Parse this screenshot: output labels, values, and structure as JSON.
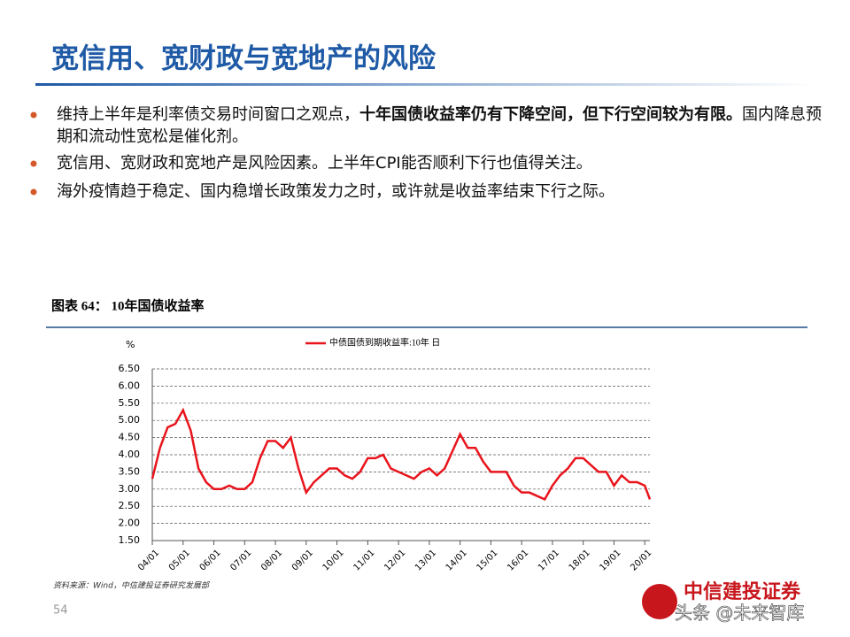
{
  "title": "宽信用、宽财政与宽地产的风险",
  "bullets": [
    {
      "parts": [
        {
          "text": "维持上半年是利率债交易时间窗口之观点，",
          "bold": false
        },
        {
          "text": "十年国债收益率仍有下降空间，但下行空间较为有限。",
          "bold": true
        },
        {
          "text": "国内降息预期和流动性宽松是催化剂。",
          "bold": false
        }
      ]
    },
    {
      "parts": [
        {
          "text": "宽信用、宽财政和宽地产是风险因素。上半年CPI能否顺利下行也值得关注。",
          "bold": false
        }
      ]
    },
    {
      "parts": [
        {
          "text": "海外疫情趋于稳定、国内稳增长政策发力之时，或许就是收益率结束下行之际。",
          "bold": false
        }
      ]
    }
  ],
  "chart_caption": "图表 64：  10年国债收益率",
  "source": "资料来源：Wind，中信建投证券研究发展部",
  "page_number": "54",
  "logo": "中信建投证券",
  "watermark": "头条 @未来智库",
  "chart_data": {
    "type": "line",
    "y_label": "%",
    "x": [
      "04/01",
      "04/04",
      "04/07",
      "04/10",
      "05/01",
      "05/04",
      "05/07",
      "05/10",
      "06/01",
      "06/04",
      "06/07",
      "06/10",
      "07/01",
      "07/04",
      "07/07",
      "07/10",
      "08/01",
      "08/04",
      "08/07",
      "08/10",
      "09/01",
      "09/04",
      "09/07",
      "09/10",
      "10/01",
      "10/04",
      "10/07",
      "10/10",
      "11/01",
      "11/04",
      "11/07",
      "11/10",
      "12/01",
      "12/04",
      "12/07",
      "12/10",
      "13/01",
      "13/04",
      "13/07",
      "13/10",
      "14/01",
      "14/04",
      "14/07",
      "14/10",
      "15/01",
      "15/04",
      "15/07",
      "15/10",
      "16/01",
      "16/04",
      "16/07",
      "16/10",
      "17/01",
      "17/04",
      "17/07",
      "17/10",
      "18/01",
      "18/04",
      "18/07",
      "18/10",
      "19/01",
      "19/04",
      "19/07",
      "19/10",
      "20/01",
      "20/03"
    ],
    "series": [
      {
        "name": "中债国债到期收益率:10年  日",
        "color": "#e8141c",
        "values": [
          3.3,
          4.2,
          4.8,
          4.9,
          5.3,
          4.7,
          3.6,
          3.2,
          3.0,
          3.0,
          3.1,
          3.0,
          3.0,
          3.2,
          3.9,
          4.4,
          4.4,
          4.2,
          4.5,
          3.6,
          2.9,
          3.2,
          3.4,
          3.6,
          3.6,
          3.4,
          3.3,
          3.5,
          3.9,
          3.9,
          4.0,
          3.6,
          3.5,
          3.4,
          3.3,
          3.5,
          3.6,
          3.4,
          3.6,
          4.1,
          4.6,
          4.2,
          4.2,
          3.8,
          3.5,
          3.5,
          3.5,
          3.1,
          2.9,
          2.9,
          2.8,
          2.7,
          3.1,
          3.4,
          3.6,
          3.9,
          3.9,
          3.7,
          3.5,
          3.5,
          3.1,
          3.4,
          3.2,
          3.2,
          3.1,
          2.7
        ]
      }
    ],
    "xlim": [
      "04/01",
      "20/03"
    ],
    "xticks": [
      "04/01",
      "05/01",
      "06/01",
      "07/01",
      "08/01",
      "09/01",
      "10/01",
      "11/01",
      "12/01",
      "13/01",
      "14/01",
      "15/01",
      "16/01",
      "17/01",
      "18/01",
      "19/01",
      "20/01"
    ],
    "ylim": [
      1.5,
      6.5
    ],
    "yticks": [
      {
        "value": 1.5,
        "label": "1.50"
      },
      {
        "value": 2,
        "label": "2.00"
      },
      {
        "value": 2.5,
        "label": "2.50"
      },
      {
        "value": 3,
        "label": "3.00"
      },
      {
        "value": 3.5,
        "label": "3.50"
      },
      {
        "value": 4,
        "label": "4.00"
      },
      {
        "value": 4.5,
        "label": "4.50"
      },
      {
        "value": 5,
        "label": "5.00"
      },
      {
        "value": 5.5,
        "label": "5.50"
      },
      {
        "value": 6,
        "label": "6.00"
      },
      {
        "value": 6.5,
        "label": "6.50"
      }
    ],
    "grid": true
  }
}
